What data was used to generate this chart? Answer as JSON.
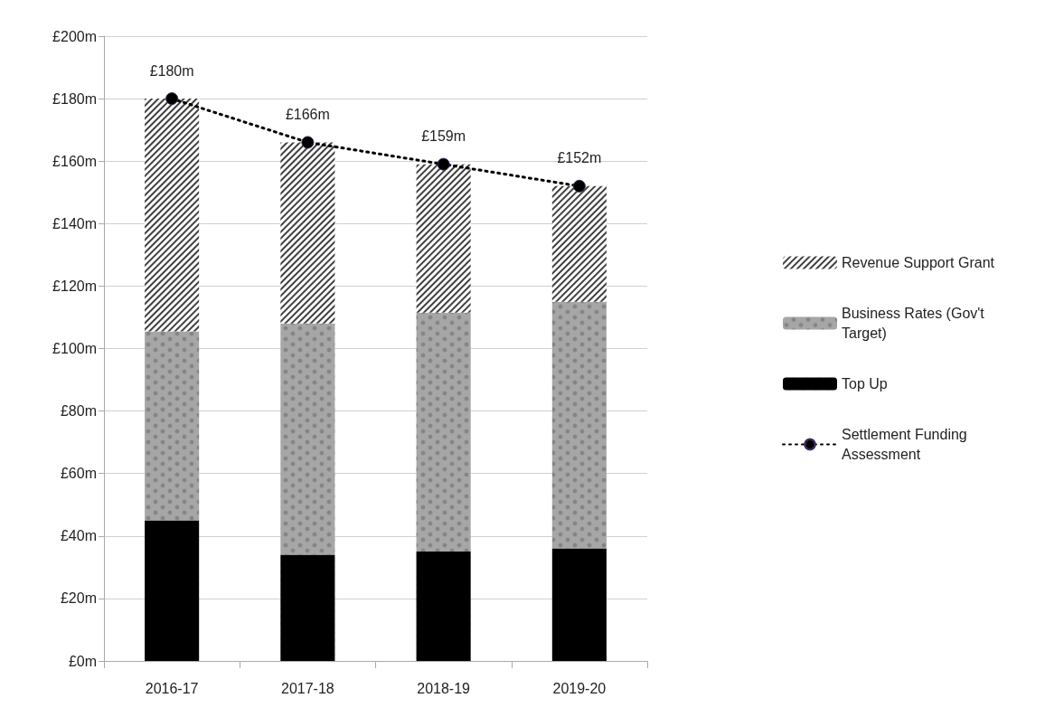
{
  "chart_data": {
    "type": "bar",
    "stacked": true,
    "categories": [
      "2016-17",
      "2017-18",
      "2018-19",
      "2019-20"
    ],
    "series": [
      {
        "name": "Top Up",
        "color": "#000000",
        "values": [
          45,
          34,
          35,
          36
        ]
      },
      {
        "name": "Business Rates (Gov't Target)",
        "color": "#a6a6a6",
        "values": [
          60.5,
          74,
          76.5,
          79
        ]
      },
      {
        "name": "Revenue Support Grant",
        "color": "#404040",
        "values": [
          74.5,
          58,
          47.5,
          37
        ]
      },
      {
        "name": "Settlement Funding Assessment",
        "type": "line",
        "color": "#000000",
        "marker": "circle",
        "line_style": "dotted",
        "values": [
          180,
          166,
          159,
          152
        ],
        "value_labels": [
          "£180m",
          "£166m",
          "£159m",
          "£152m"
        ]
      }
    ],
    "ylim": [
      0,
      200
    ],
    "yticks": [
      {
        "value": 0,
        "label": "£0m"
      },
      {
        "value": 20,
        "label": "£20m"
      },
      {
        "value": 40,
        "label": "£40m"
      },
      {
        "value": 60,
        "label": "£60m"
      },
      {
        "value": 80,
        "label": "£80m"
      },
      {
        "value": 100,
        "label": "£100m"
      },
      {
        "value": 120,
        "label": "£120m"
      },
      {
        "value": 140,
        "label": "£140m"
      },
      {
        "value": 160,
        "label": "£160m"
      },
      {
        "value": 180,
        "label": "£180m"
      },
      {
        "value": 200,
        "label": "£200m"
      }
    ],
    "grid": "y",
    "legend": "right"
  }
}
